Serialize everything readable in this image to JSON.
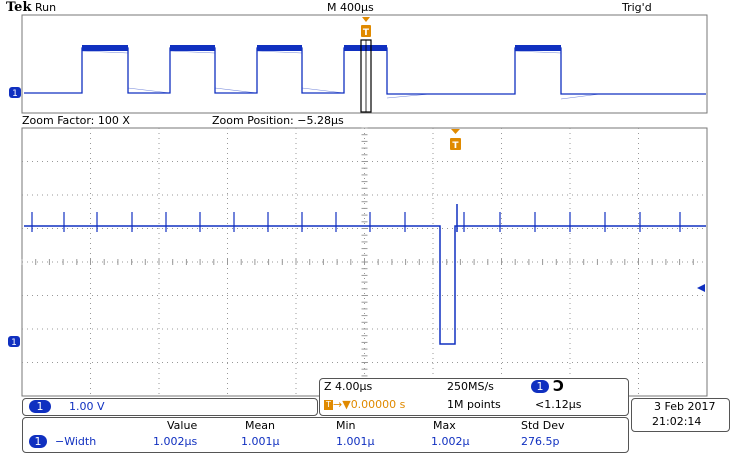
{
  "header": {
    "brand": "Tek",
    "status": "Run",
    "timebase": "M 400µs",
    "trigger_state": "Trig'd"
  },
  "zoom_bar": {
    "factor_text": "Zoom Factor: 100 X",
    "position_text": "Zoom Position: −5.28µs"
  },
  "channel": {
    "number": "1",
    "scale": "1.00 V"
  },
  "zoom_info": {
    "time_per_div": "Z 4.00µs",
    "trigger_offset": "0.00000 s",
    "sample_rate": "250MS/s",
    "record_length": "1M points",
    "trigger_level": "<1.12µs"
  },
  "clock": {
    "date": "3 Feb  2017",
    "time": "21:02:14"
  },
  "measurements": {
    "headers": [
      "Value",
      "Mean",
      "Min",
      "Max",
      "Std Dev"
    ],
    "rows": [
      {
        "channel": "1",
        "name": "−Width",
        "values": [
          "1.002µs",
          "1.001µ",
          "1.001µ",
          "1.002µ",
          "276.5p"
        ]
      }
    ]
  },
  "colors": {
    "trace": "#1030c0",
    "trigger_marker": "#e08a00",
    "grid": "#888888"
  },
  "icons": [
    "trigger-marker-icon",
    "channel-ground-marker-icon",
    "trigger-level-arrow-icon",
    "falling-edge-trigger-icon"
  ]
}
